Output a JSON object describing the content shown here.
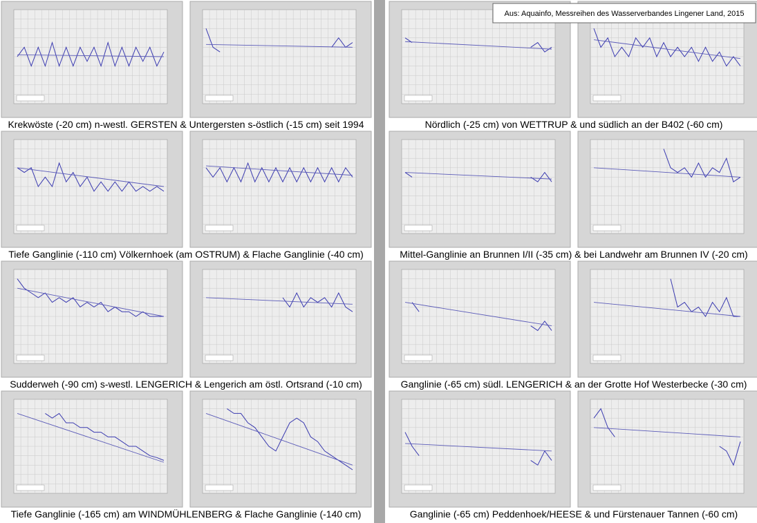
{
  "source": "Aus: Aquainfo, Messreihen des Wasserverbandes Lingener Land, 2015",
  "ylim": [
    0,
    10
  ],
  "groups": [
    {
      "caption": "Krekwöste (-20 cm) n-westl. GERSTEN & Untergersten s-östlich (-15 cm) seit 1994",
      "panels": [
        {
          "values": [
            5,
            6,
            4,
            6,
            4,
            6.5,
            4,
            6,
            4,
            6,
            4.5,
            6,
            4,
            6.5,
            4,
            6,
            4,
            6,
            4.5,
            6,
            4,
            5.5
          ],
          "trend": [
            5.2,
            5.0
          ]
        },
        {
          "values": [
            8,
            6,
            5.5,
            null,
            null,
            null,
            null,
            null,
            null,
            null,
            null,
            null,
            null,
            null,
            null,
            null,
            null,
            null,
            6,
            7,
            6,
            6.5
          ],
          "trend": [
            6.3,
            6.0
          ]
        }
      ]
    },
    {
      "caption": "Nördlich (-25 cm) von WETTRUP & und südlich an der B402 (-60 cm)",
      "panels": [
        {
          "values": [
            7,
            6.5,
            null,
            null,
            null,
            null,
            null,
            null,
            null,
            null,
            null,
            null,
            null,
            null,
            null,
            null,
            null,
            null,
            6,
            6.5,
            5.5,
            6
          ],
          "trend": [
            6.6,
            5.8
          ]
        },
        {
          "values": [
            8,
            6,
            7,
            5,
            6,
            5,
            7,
            6,
            7,
            5,
            6.5,
            5,
            6,
            5,
            6,
            4.5,
            6,
            4.5,
            5.5,
            4,
            5,
            4
          ],
          "trend": [
            6.8,
            4.8
          ]
        }
      ]
    },
    {
      "caption": "Tiefe Ganglinie (-110 cm) Völkernhoek (am OSTRUM) & Flache Ganglinie (-40 cm)",
      "panels": [
        {
          "values": [
            7,
            6.5,
            7,
            5,
            6,
            5,
            7.5,
            5.5,
            6.5,
            5,
            6,
            4.5,
            5.5,
            4.5,
            5.5,
            4.5,
            5.5,
            4.5,
            5,
            4.5,
            5,
            4.5
          ],
          "trend": [
            7.0,
            5.0
          ]
        },
        {
          "values": [
            7,
            6,
            7,
            5.5,
            7,
            5.5,
            7.5,
            5.5,
            7,
            5.5,
            7,
            5.5,
            7,
            5.5,
            7,
            5.5,
            7,
            5.5,
            7,
            5.5,
            7,
            6
          ],
          "trend": [
            7.2,
            6.2
          ]
        }
      ]
    },
    {
      "caption": "Mittel-Ganglinie an Brunnen I/II (-35 cm) & bei Landwehr am Brunnen IV (-20 cm)",
      "panels": [
        {
          "values": [
            6.5,
            6,
            null,
            null,
            null,
            null,
            null,
            null,
            null,
            null,
            null,
            null,
            null,
            null,
            null,
            null,
            null,
            null,
            6,
            5.5,
            6.5,
            5.5
          ],
          "trend": [
            6.5,
            5.8
          ]
        },
        {
          "values": [
            null,
            null,
            null,
            null,
            null,
            null,
            null,
            null,
            null,
            null,
            9,
            7,
            6.5,
            7,
            6,
            7.5,
            6,
            7,
            6.5,
            8,
            5.5,
            6
          ],
          "trend": [
            7.0,
            6.0
          ]
        }
      ]
    },
    {
      "caption": "Sudderweh (-90 cm) s-westl. LENGERICH & Lengerich am östl. Ortsrand (-10 cm)",
      "panels": [
        {
          "values": [
            9,
            8,
            7.5,
            7,
            7.5,
            6.5,
            7,
            6.5,
            7,
            6,
            6.5,
            6,
            6.5,
            5.5,
            6,
            5.5,
            5.5,
            5,
            5.5,
            5,
            5,
            5
          ],
          "trend": [
            8.0,
            5.0
          ]
        },
        {
          "values": [
            null,
            null,
            null,
            null,
            null,
            null,
            null,
            null,
            null,
            null,
            null,
            7,
            6,
            7.5,
            6,
            7,
            6.5,
            7,
            6,
            7.5,
            6,
            5.5
          ],
          "trend": [
            7.0,
            6.3
          ]
        }
      ]
    },
    {
      "caption": "Ganglinie (-65 cm) südl. LENGERICH & an der Grotte Hof Westerbecke (-30 cm)",
      "panels": [
        {
          "values": [
            null,
            6.5,
            5.5,
            null,
            null,
            null,
            null,
            null,
            null,
            null,
            null,
            null,
            null,
            null,
            null,
            null,
            null,
            null,
            4,
            3.5,
            4.5,
            3.5
          ],
          "trend": [
            6.5,
            4.0
          ]
        },
        {
          "values": [
            null,
            null,
            null,
            null,
            null,
            null,
            null,
            null,
            null,
            null,
            null,
            9,
            6,
            6.5,
            5.5,
            6,
            5,
            6.5,
            5.5,
            7,
            5,
            5
          ],
          "trend": [
            6.5,
            5.0
          ]
        }
      ]
    },
    {
      "caption": "Tiefe Ganglinie (-165 cm) am WINDMÜHLENBERG & Flache Ganglinie (-140 cm)",
      "panels": [
        {
          "values": [
            null,
            null,
            null,
            null,
            8.5,
            8,
            8.5,
            7.5,
            7.5,
            7,
            7,
            6.5,
            6.5,
            6,
            6,
            5.5,
            5,
            5,
            4.5,
            4,
            3.8,
            3.5
          ],
          "trend": [
            8.5,
            3.3
          ]
        },
        {
          "values": [
            null,
            null,
            null,
            9,
            8.5,
            8.5,
            7.5,
            7,
            6,
            5,
            4.5,
            6,
            7.5,
            8,
            7.5,
            6,
            5.5,
            4.5,
            4,
            3.5,
            3,
            2.5
          ],
          "trend": [
            8.5,
            3.0
          ]
        }
      ]
    },
    {
      "caption": "Ganglinie (-65 cm) Peddenhoek/HEESE & und Fürstenauer Tannen (-60 cm)",
      "panels": [
        {
          "values": [
            6.5,
            5,
            4,
            null,
            null,
            null,
            null,
            null,
            null,
            null,
            null,
            null,
            null,
            null,
            null,
            null,
            null,
            null,
            3.5,
            3,
            4.5,
            3.5
          ],
          "trend": [
            5.3,
            4.5
          ]
        },
        {
          "values": [
            8,
            9,
            7,
            6,
            null,
            null,
            null,
            null,
            null,
            null,
            null,
            null,
            null,
            null,
            null,
            null,
            null,
            null,
            5,
            4.5,
            3,
            5.5
          ],
          "trend": [
            7.0,
            6.0
          ]
        }
      ]
    }
  ]
}
